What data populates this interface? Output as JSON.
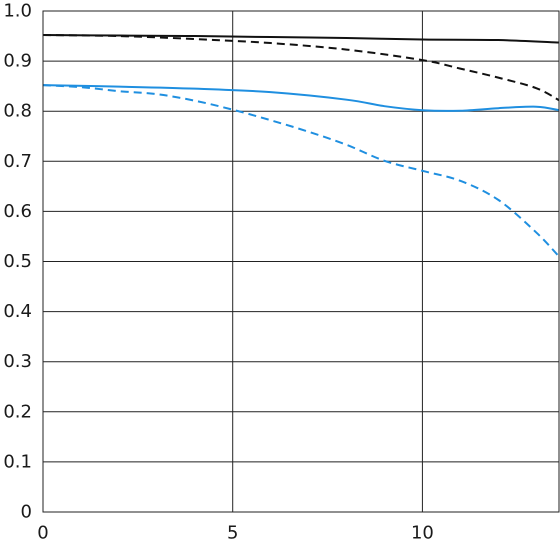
{
  "chart_data": {
    "type": "line",
    "title": "",
    "xlabel": "",
    "ylabel": "",
    "xlim": [
      0,
      13.6
    ],
    "ylim": [
      0,
      1.0
    ],
    "x_ticks": [
      0,
      5,
      10
    ],
    "x_tick_labels": [
      "0",
      "5",
      "10"
    ],
    "y_ticks": [
      0,
      0.1,
      0.2,
      0.3,
      0.4,
      0.5,
      0.6,
      0.7,
      0.8,
      0.9,
      1.0
    ],
    "y_tick_labels": [
      "0",
      "0.1",
      "0.2",
      "0.3",
      "0.4",
      "0.5",
      "0.6",
      "0.7",
      "0.8",
      "0.9",
      "1.0"
    ],
    "grid": true,
    "legend": "none",
    "series": [
      {
        "color": "#111111",
        "dash": "solid",
        "x": [
          0,
          2,
          4,
          6,
          8,
          10,
          12,
          13.6
        ],
        "y": [
          0.952,
          0.951,
          0.95,
          0.948,
          0.946,
          0.943,
          0.942,
          0.937
        ]
      },
      {
        "color": "#111111",
        "dash": "dashed",
        "x": [
          0,
          2,
          4,
          6,
          8,
          10,
          11,
          12,
          13,
          13.6
        ],
        "y": [
          0.952,
          0.95,
          0.944,
          0.936,
          0.923,
          0.902,
          0.885,
          0.867,
          0.846,
          0.822
        ]
      },
      {
        "color": "#1f8fe0",
        "dash": "solid",
        "x": [
          0,
          2,
          4,
          6,
          8,
          9,
          10,
          11,
          12,
          13,
          13.6
        ],
        "y": [
          0.852,
          0.849,
          0.845,
          0.838,
          0.823,
          0.81,
          0.802,
          0.801,
          0.806,
          0.809,
          0.802
        ]
      },
      {
        "color": "#1f8fe0",
        "dash": "dashed",
        "x": [
          0,
          1,
          2,
          3,
          4,
          5,
          6,
          7,
          8,
          9,
          10,
          11,
          12,
          13,
          13.6
        ],
        "y": [
          0.852,
          0.848,
          0.84,
          0.834,
          0.821,
          0.803,
          0.782,
          0.759,
          0.733,
          0.701,
          0.681,
          0.661,
          0.623,
          0.558,
          0.51
        ]
      }
    ]
  }
}
